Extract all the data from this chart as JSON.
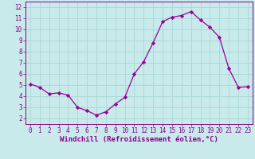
{
  "x": [
    0,
    1,
    2,
    3,
    4,
    5,
    6,
    7,
    8,
    9,
    10,
    11,
    12,
    13,
    14,
    15,
    16,
    17,
    18,
    19,
    20,
    21,
    22,
    23
  ],
  "y": [
    5.1,
    4.8,
    4.2,
    4.3,
    4.1,
    3.0,
    2.7,
    2.3,
    2.6,
    3.3,
    3.9,
    6.0,
    7.1,
    8.8,
    10.7,
    11.1,
    11.25,
    11.6,
    10.85,
    10.2,
    9.3,
    6.5,
    4.8,
    4.85
  ],
  "line_color": "#990099",
  "marker": "D",
  "marker_size": 2.2,
  "bg_color": "#c8eaea",
  "grid_color": "#aed8d8",
  "xlabel": "Windchill (Refroidissement éolien,°C)",
  "xlabel_color": "#880088",
  "tick_color": "#880088",
  "spine_color": "#880088",
  "xlim": [
    -0.5,
    23.5
  ],
  "ylim": [
    1.5,
    12.5
  ],
  "yticks": [
    2,
    3,
    4,
    5,
    6,
    7,
    8,
    9,
    10,
    11,
    12
  ],
  "xticks": [
    0,
    1,
    2,
    3,
    4,
    5,
    6,
    7,
    8,
    9,
    10,
    11,
    12,
    13,
    14,
    15,
    16,
    17,
    18,
    19,
    20,
    21,
    22,
    23
  ],
  "tick_fontsize": 5.5,
  "xlabel_fontsize": 6.5,
  "linewidth": 0.9
}
